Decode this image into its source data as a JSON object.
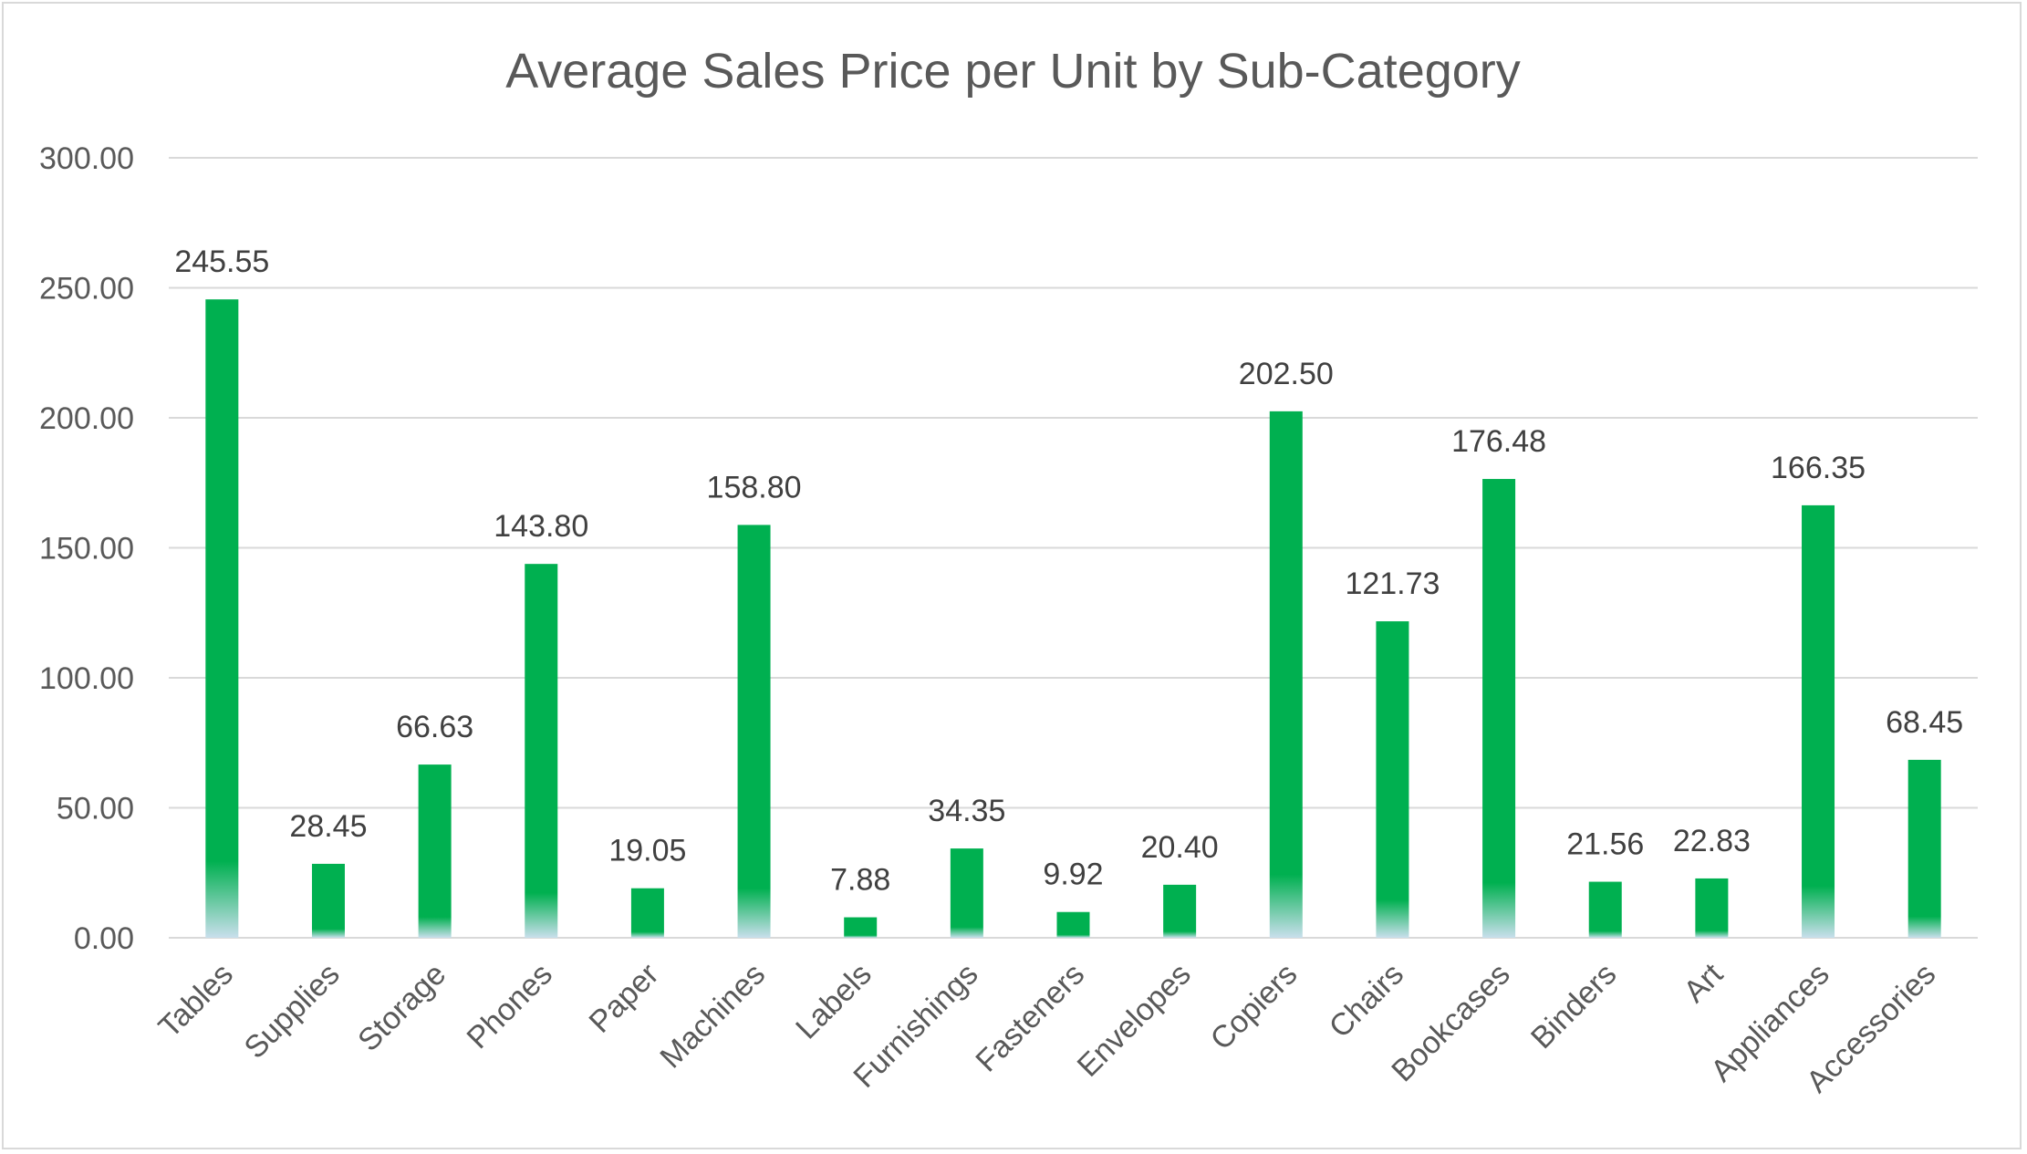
{
  "chart_data": {
    "type": "bar",
    "title": "Average Sales Price per Unit by Sub-Category",
    "xlabel": "",
    "ylabel": "",
    "ylim": [
      0,
      300
    ],
    "yticks": [
      "0.00",
      "50.00",
      "100.00",
      "150.00",
      "200.00",
      "250.00",
      "300.00"
    ],
    "grid": true,
    "legend": "none",
    "bar_color": "#00b050",
    "bar_fade_color": "#c9dfec",
    "categories": [
      "Tables",
      "Supplies",
      "Storage",
      "Phones",
      "Paper",
      "Machines",
      "Labels",
      "Furnishings",
      "Fasteners",
      "Envelopes",
      "Copiers",
      "Chairs",
      "Bookcases",
      "Binders",
      "Art",
      "Appliances",
      "Accessories"
    ],
    "values": [
      245.55,
      28.45,
      66.63,
      143.8,
      19.05,
      158.8,
      7.88,
      34.35,
      9.92,
      20.4,
      202.5,
      121.73,
      176.48,
      21.56,
      22.83,
      166.35,
      68.45
    ],
    "data_labels": [
      "245.55",
      "28.45",
      "66.63",
      "143.80",
      "19.05",
      "158.80",
      "7.88",
      "34.35",
      "9.92",
      "20.40",
      "202.50",
      "121.73",
      "176.48",
      "21.56",
      "22.83",
      "166.35",
      "68.45"
    ]
  }
}
